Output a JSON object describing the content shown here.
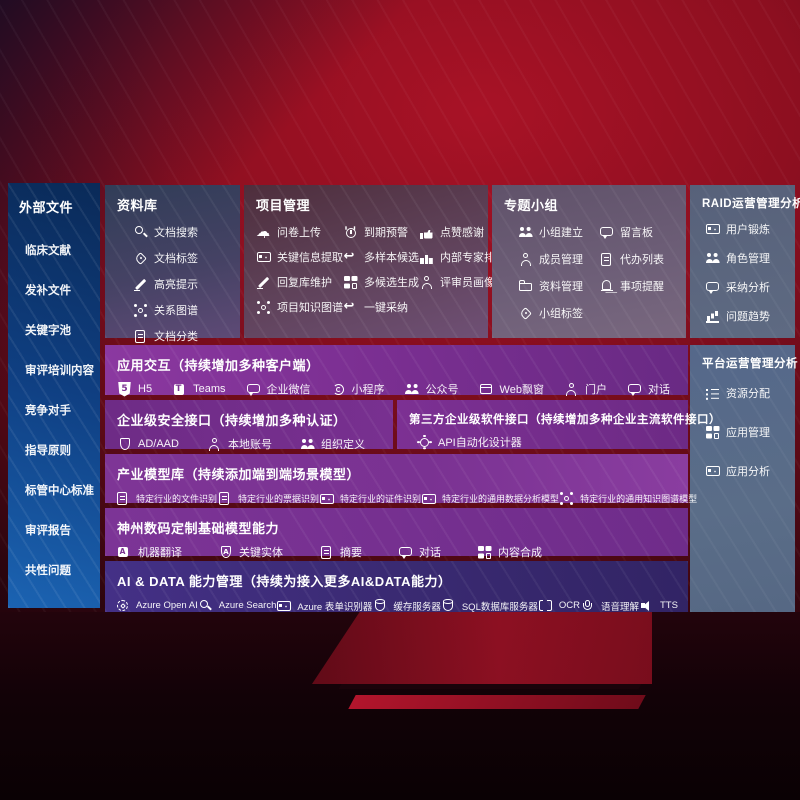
{
  "colors": {
    "background_red": "#8d0f20",
    "sidebar_blue": "#1b63b2",
    "band_purple": "#7b2f92",
    "ai_band_indigo": "#3a2a72",
    "panel_slate": "#5e6a82",
    "text": "#ffffff"
  },
  "sidebar": {
    "title": "外部文件",
    "items": [
      {
        "label": "临床文献"
      },
      {
        "label": "发补文件"
      },
      {
        "label": "关键字池"
      },
      {
        "label": "审评培训内容"
      },
      {
        "label": "竞争对手"
      },
      {
        "label": "指导原则"
      },
      {
        "label": "标管中心标准"
      },
      {
        "label": "审评报告"
      },
      {
        "label": "共性问题"
      }
    ]
  },
  "panels": {
    "library": {
      "title": "资料库",
      "items": [
        {
          "icon": "search",
          "label": "文档搜索"
        },
        {
          "icon": "tag",
          "label": "文档标签"
        },
        {
          "icon": "pen",
          "label": "高亮提示"
        },
        {
          "icon": "net",
          "label": "关系图谱"
        },
        {
          "icon": "doc",
          "label": "文档分类"
        }
      ]
    },
    "project": {
      "title": "项目管理",
      "items": [
        {
          "icon": "cloud",
          "label": "问卷上传"
        },
        {
          "icon": "alarm",
          "label": "到期预警"
        },
        {
          "icon": "thumb",
          "label": "点赞感谢"
        },
        {
          "icon": "card",
          "label": "关键信息提取"
        },
        {
          "icon": "reply",
          "label": "多样本候选"
        },
        {
          "icon": "rank",
          "label": "内部专家排名"
        },
        {
          "icon": "pen",
          "label": "回复库维护"
        },
        {
          "icon": "grid",
          "label": "多候选生成"
        },
        {
          "icon": "person",
          "label": "评审员画像"
        },
        {
          "icon": "net",
          "label": "项目知识图谱"
        },
        {
          "icon": "reply",
          "label": "一键采纳"
        }
      ]
    },
    "group": {
      "title": "专题小组",
      "items": [
        {
          "icon": "people",
          "label": "小组建立"
        },
        {
          "icon": "chat",
          "label": "留言板"
        },
        {
          "icon": "person",
          "label": "成员管理"
        },
        {
          "icon": "doc",
          "label": "代办列表"
        },
        {
          "icon": "folder",
          "label": "资料管理"
        },
        {
          "icon": "bell",
          "label": "事项提醒"
        },
        {
          "icon": "tag",
          "label": "小组标签"
        }
      ]
    },
    "raid": {
      "title": "RAID运营管理分析",
      "items": [
        {
          "icon": "card",
          "label": "用户锻炼"
        },
        {
          "icon": "people",
          "label": "角色管理"
        },
        {
          "icon": "chat",
          "label": "采纳分析"
        },
        {
          "icon": "chart",
          "label": "问题趋势"
        }
      ]
    },
    "platform": {
      "title": "平台运营管理分析",
      "items": [
        {
          "icon": "list",
          "label": "资源分配"
        },
        {
          "icon": "grid",
          "label": "应用管理"
        },
        {
          "icon": "card",
          "label": "应用分析"
        }
      ]
    }
  },
  "bands": {
    "interaction": {
      "title": "应用交互（持续增加多种客户端）",
      "items": [
        {
          "icon": "h5",
          "label": "H5"
        },
        {
          "icon": "teams",
          "label": "Teams"
        },
        {
          "icon": "chat",
          "label": "企业微信"
        },
        {
          "icon": "mini",
          "label": "小程序"
        },
        {
          "icon": "people",
          "label": "公众号"
        },
        {
          "icon": "window",
          "label": "Web飘窗"
        },
        {
          "icon": "person",
          "label": "门户"
        },
        {
          "icon": "chat",
          "label": "对话"
        }
      ]
    },
    "security": {
      "title": "企业级安全接口（持续增加多种认证）",
      "items": [
        {
          "icon": "shield",
          "label": "AD/AAD"
        },
        {
          "icon": "person",
          "label": "本地账号"
        },
        {
          "icon": "people",
          "label": "组织定义"
        }
      ]
    },
    "thirdparty": {
      "title": "第三方企业级软件接口（持续增加多种企业主流软件接口）",
      "items": [
        {
          "icon": "gear",
          "label": "API自动化设计器"
        }
      ]
    },
    "models": {
      "title": "产业模型库（持续添加端到端场景模型）",
      "items": [
        {
          "icon": "doc",
          "label": "特定行业的文件识别"
        },
        {
          "icon": "doc",
          "label": "特定行业的票据识别"
        },
        {
          "icon": "card",
          "label": "特定行业的证件识别"
        },
        {
          "icon": "card",
          "label": "特定行业的通用数据分析模型"
        },
        {
          "icon": "net",
          "label": "特定行业的通用知识图谱模型"
        }
      ]
    },
    "base_models": {
      "title": "神州数码定制基础模型能力",
      "items": [
        {
          "icon": "translate",
          "label": "机器翻译"
        },
        {
          "icon": "shield-a",
          "label": "关键实体"
        },
        {
          "icon": "doc",
          "label": "摘要"
        },
        {
          "icon": "chat",
          "label": "对话"
        },
        {
          "icon": "grid",
          "label": "内容合成"
        }
      ]
    },
    "ai_data": {
      "title": "AI & DATA 能力管理（持续为接入更多AI&DATA能力）",
      "items": [
        {
          "icon": "openai",
          "label": "Azure Open AI"
        },
        {
          "icon": "search",
          "label": "Azure Search"
        },
        {
          "icon": "card",
          "label": "Azure 表单识别器"
        },
        {
          "icon": "db",
          "label": "缓存服务器"
        },
        {
          "icon": "db",
          "label": "SQL数据库服务器"
        },
        {
          "icon": "ocr",
          "label": "OCR"
        },
        {
          "icon": "mic",
          "label": "语音理解"
        },
        {
          "icon": "tts",
          "label": "TTS"
        }
      ]
    }
  }
}
